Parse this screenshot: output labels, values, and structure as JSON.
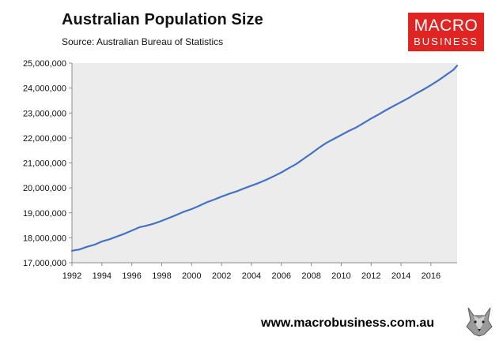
{
  "header": {
    "title": "Australian Population Size",
    "source": "Source: Australian Bureau of Statistics"
  },
  "logo": {
    "line1": "MACRO",
    "line2": "BUSINESS",
    "color": "#e02421"
  },
  "footer": {
    "website": "www.macrobusiness.com.au"
  },
  "colors": {
    "plot_background": "#ececec",
    "line": "#4472c4"
  },
  "chart_data": {
    "type": "line",
    "title": "Australian Population Size",
    "xlabel": "",
    "ylabel": "",
    "xlim": [
      1992,
      2017.75
    ],
    "ylim": [
      17000000,
      25000000
    ],
    "grid": false,
    "x_ticks": [
      1992,
      1994,
      1996,
      1998,
      2000,
      2002,
      2004,
      2006,
      2008,
      2010,
      2012,
      2014,
      2016
    ],
    "y_ticks": [
      17000000,
      18000000,
      19000000,
      20000000,
      21000000,
      22000000,
      23000000,
      24000000,
      25000000
    ],
    "x_tick_labels": [
      "1992",
      "1994",
      "1996",
      "1998",
      "2000",
      "2002",
      "2004",
      "2006",
      "2008",
      "2010",
      "2012",
      "2014",
      "2016"
    ],
    "y_tick_labels": [
      "17,000,000",
      "18,000,000",
      "19,000,000",
      "20,000,000",
      "21,000,000",
      "22,000,000",
      "23,000,000",
      "24,000,000",
      "25,000,000"
    ],
    "series": [
      {
        "name": "",
        "x": [
          1992.0,
          1992.5,
          1993.0,
          1993.5,
          1994.0,
          1994.5,
          1995.0,
          1995.5,
          1996.0,
          1996.5,
          1997.0,
          1997.5,
          1998.0,
          1998.5,
          1999.0,
          1999.5,
          2000.0,
          2000.5,
          2001.0,
          2001.5,
          2002.0,
          2002.5,
          2003.0,
          2003.5,
          2004.0,
          2004.5,
          2005.0,
          2005.5,
          2006.0,
          2006.5,
          2007.0,
          2007.5,
          2008.0,
          2008.5,
          2009.0,
          2009.5,
          2010.0,
          2010.5,
          2011.0,
          2011.5,
          2012.0,
          2012.5,
          2013.0,
          2013.5,
          2014.0,
          2014.5,
          2015.0,
          2015.5,
          2016.0,
          2016.5,
          2017.0,
          2017.5,
          2017.75
        ],
        "values": [
          17480000,
          17530000,
          17640000,
          17720000,
          17850000,
          17940000,
          18050000,
          18160000,
          18290000,
          18420000,
          18490000,
          18570000,
          18680000,
          18800000,
          18920000,
          19050000,
          19150000,
          19280000,
          19420000,
          19530000,
          19650000,
          19760000,
          19860000,
          19980000,
          20090000,
          20200000,
          20330000,
          20470000,
          20620000,
          20790000,
          20960000,
          21170000,
          21380000,
          21600000,
          21800000,
          21960000,
          22120000,
          22280000,
          22420000,
          22600000,
          22780000,
          22940000,
          23120000,
          23280000,
          23440000,
          23600000,
          23780000,
          23940000,
          24120000,
          24310000,
          24520000,
          24730000,
          24900000
        ]
      }
    ]
  }
}
